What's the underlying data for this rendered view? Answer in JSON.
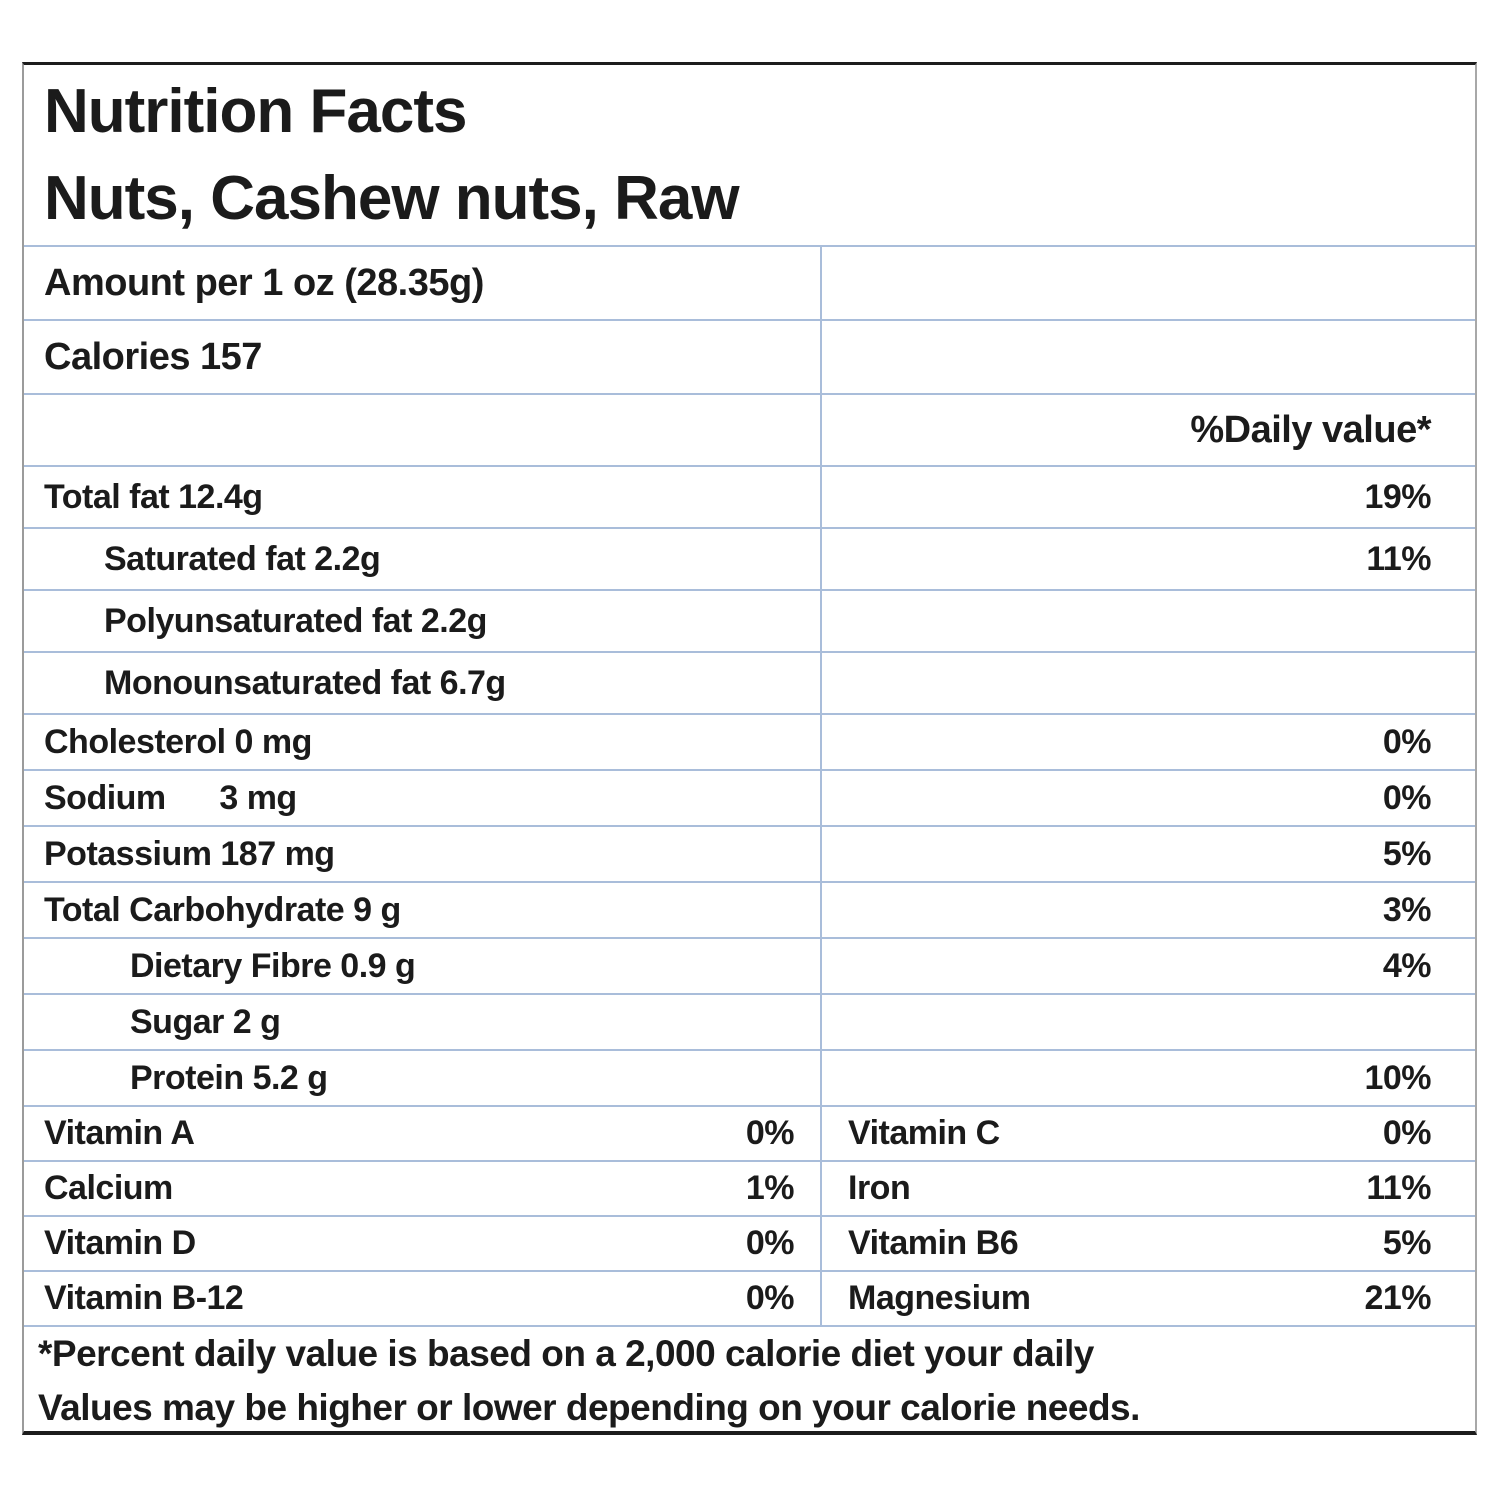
{
  "title": {
    "line1": "Nutrition Facts",
    "line2": "Nuts, Cashew nuts, Raw"
  },
  "serving": {
    "label": "Amount per 1 oz (28.35g)"
  },
  "calories": {
    "label": "Calories 157"
  },
  "daily_value_header": "%Daily value*",
  "nutrients": [
    {
      "label": "Total fat 12.4g",
      "pct": "19%"
    },
    {
      "label": "Saturated fat 2.2g",
      "pct": "11%"
    },
    {
      "label": "Polyunsaturated fat 2.2g",
      "pct": ""
    },
    {
      "label": "Monounsaturated fat 6.7g",
      "pct": ""
    },
    {
      "label": "Cholesterol 0 mg",
      "pct": "0%"
    },
    {
      "label": "Sodium      3 mg",
      "pct": "0%"
    },
    {
      "label": "Potassium 187 mg",
      "pct": "5%"
    },
    {
      "label": "Total Carbohydrate 9 g",
      "pct": "3%"
    },
    {
      "label": "Dietary Fibre 0.9 g",
      "pct": "4%"
    },
    {
      "label": "Sugar 2 g",
      "pct": ""
    },
    {
      "label": "Protein 5.2 g",
      "pct": "10%"
    }
  ],
  "micronutrients": [
    {
      "left_label": "Vitamin A",
      "left_pct": "0%",
      "right_label": "Vitamin C",
      "right_pct": "0%"
    },
    {
      "left_label": "Calcium",
      "left_pct": "1%",
      "right_label": "Iron",
      "right_pct": "11%"
    },
    {
      "left_label": "Vitamin D",
      "left_pct": "0%",
      "right_label": "Vitamin B6",
      "right_pct": "5%"
    },
    {
      "left_label": "Vitamin B-12",
      "left_pct": "0%",
      "right_label": "Magnesium",
      "right_pct": "21%"
    }
  ],
  "footnote": {
    "line1": "*Percent daily value is based on a 2,000 calorie diet your daily",
    "line2": "Values may be higher or lower depending on your calorie needs."
  },
  "colors": {
    "outer_border": "#1c1c1c",
    "inner_border": "#a9bdda",
    "text": "#1b1b1b",
    "background": "#ffffff"
  }
}
